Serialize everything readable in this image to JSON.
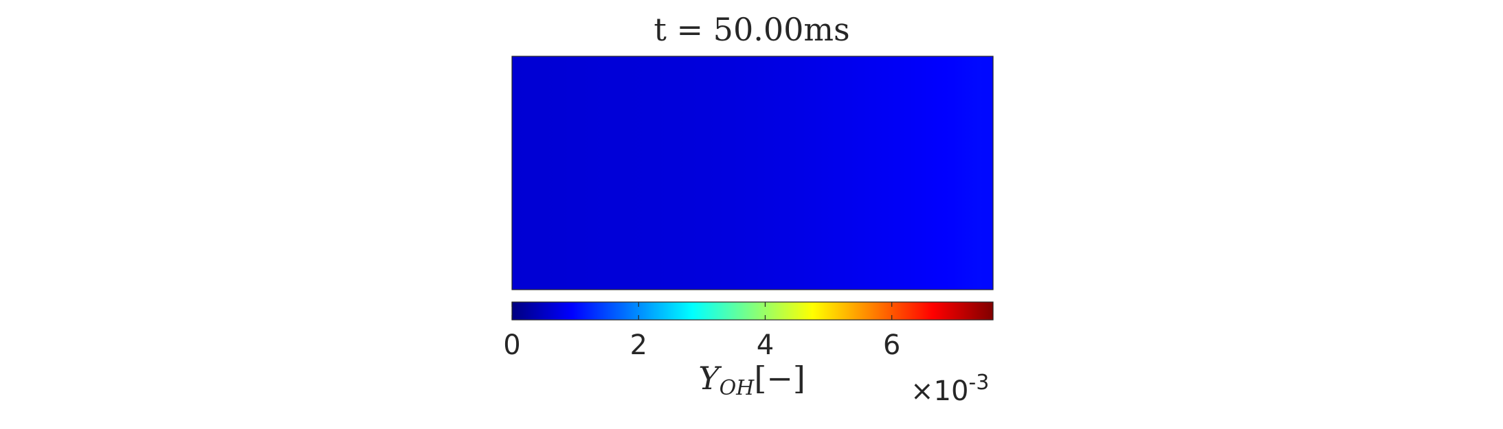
{
  "chart_data": {
    "type": "heatmap",
    "title": "t = 50.00ms",
    "field": {
      "description_values": "Y_OH mass fraction across the domain (x-direction profile, uniform in y)",
      "x_fraction": [
        0.0,
        0.1,
        0.2,
        0.3,
        0.4,
        0.5,
        0.6,
        0.7,
        0.8,
        0.9,
        0.97,
        1.0
      ],
      "values_e3": [
        0.62,
        0.64,
        0.66,
        0.67,
        0.69,
        0.72,
        0.76,
        0.82,
        0.88,
        0.95,
        1.02,
        1.0
      ]
    },
    "colorbar": {
      "colormap": "jet",
      "range": [
        0,
        0.0076
      ],
      "ticks": [
        "0",
        "2",
        "4",
        "6"
      ],
      "tick_values": [
        0,
        0.002,
        0.004,
        0.006
      ],
      "label_main": "Y",
      "label_sub": "OH",
      "label_suffix": "[−]",
      "multiplier_prefix": "×10",
      "multiplier_exp": "-3",
      "orientation": "horizontal",
      "placement": "bottom"
    },
    "colors": {
      "axes_border": "#262626",
      "text": "#262626"
    }
  }
}
